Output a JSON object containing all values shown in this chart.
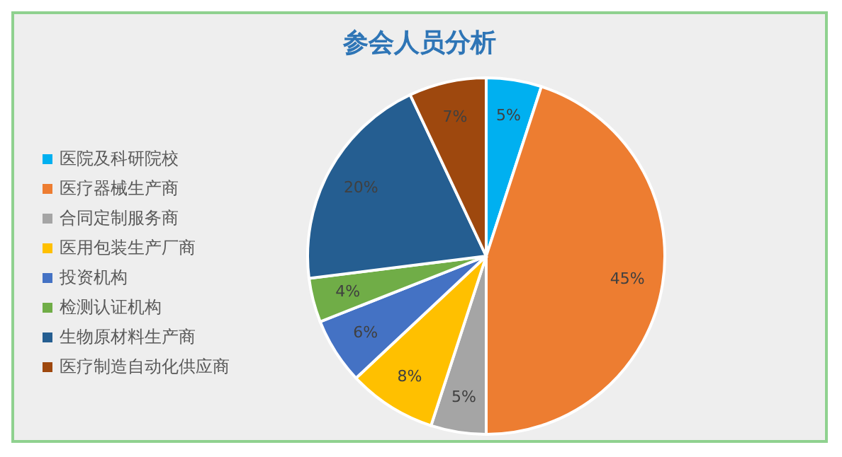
{
  "chart_data": {
    "type": "pie",
    "title": "参会人员分析",
    "categories": [
      "医院及科研院校",
      "医疗器械生产商",
      "合同定制服务商",
      "医用包装生产厂商",
      "投资机构",
      "检测认证机构",
      "生物原材料生产商",
      "医疗制造自动化供应商"
    ],
    "values": [
      5,
      45,
      5,
      8,
      6,
      4,
      20,
      7
    ],
    "value_labels": [
      "5%",
      "45%",
      "5%",
      "8%",
      "6%",
      "4%",
      "20%",
      "7%"
    ],
    "colors": [
      "#00b0f0",
      "#ed7d31",
      "#a5a5a5",
      "#ffc000",
      "#4472c4",
      "#70ad47",
      "#255e91",
      "#9e480e"
    ],
    "legend": "left"
  }
}
